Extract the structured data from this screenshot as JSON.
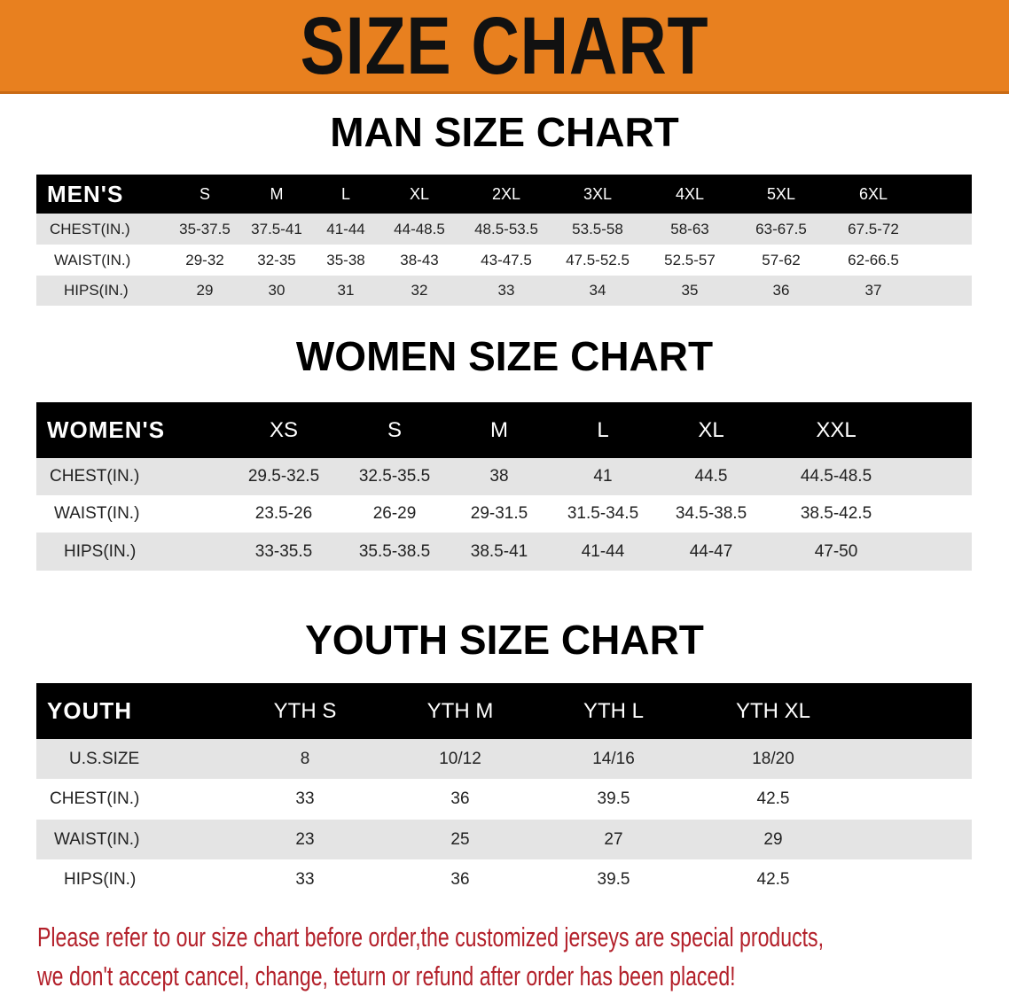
{
  "banner": {
    "title": "SIZE CHART",
    "color": "#e8801f"
  },
  "men": {
    "title": "MAN SIZE CHART",
    "header": [
      "MEN'S",
      "S",
      "M",
      "L",
      "XL",
      "2XL",
      "3XL",
      "4XL",
      "5XL",
      "6XL"
    ],
    "rows": [
      [
        "CHEST(IN.)",
        "35-37.5",
        "37.5-41",
        "41-44",
        "44-48.5",
        "48.5-53.5",
        "53.5-58",
        "58-63",
        "63-67.5",
        "67.5-72"
      ],
      [
        "WAIST(IN.)",
        "29-32",
        "32-35",
        "35-38",
        "38-43",
        "43-47.5",
        "47.5-52.5",
        "52.5-57",
        "57-62",
        "62-66.5"
      ],
      [
        "HIPS(IN.)",
        "29",
        "30",
        "31",
        "32",
        "33",
        "34",
        "35",
        "36",
        "37"
      ]
    ]
  },
  "women": {
    "title": "WOMEN SIZE CHART",
    "header": [
      "WOMEN'S",
      "XS",
      "S",
      "M",
      "L",
      "XL",
      "XXL"
    ],
    "rows": [
      [
        "CHEST(IN.)",
        "29.5-32.5",
        "32.5-35.5",
        "38",
        "41",
        "44.5",
        "44.5-48.5"
      ],
      [
        "WAIST(IN.)",
        "23.5-26",
        "26-29",
        "29-31.5",
        "31.5-34.5",
        "34.5-38.5",
        "38.5-42.5"
      ],
      [
        "HIPS(IN.)",
        "33-35.5",
        "35.5-38.5",
        "38.5-41",
        "41-44",
        "44-47",
        "47-50"
      ]
    ]
  },
  "youth": {
    "title": "YOUTH SIZE CHART",
    "header": [
      "YOUTH",
      "YTH S",
      "YTH M",
      "YTH L",
      "YTH XL"
    ],
    "rows": [
      [
        "U.S.SIZE",
        "8",
        "10/12",
        "14/16",
        "18/20"
      ],
      [
        "CHEST(IN.)",
        "33",
        "36",
        "39.5",
        "42.5"
      ],
      [
        "WAIST(IN.)",
        "23",
        "25",
        "27",
        "29"
      ],
      [
        "HIPS(IN.)",
        "33",
        "36",
        "39.5",
        "42.5"
      ]
    ]
  },
  "footer": {
    "line1": "Please refer to our size chart before order,the customized jerseys are special products,",
    "line2": "we don't accept cancel, change, teturn or refund after order has been placed!",
    "color": "#b3202a"
  }
}
